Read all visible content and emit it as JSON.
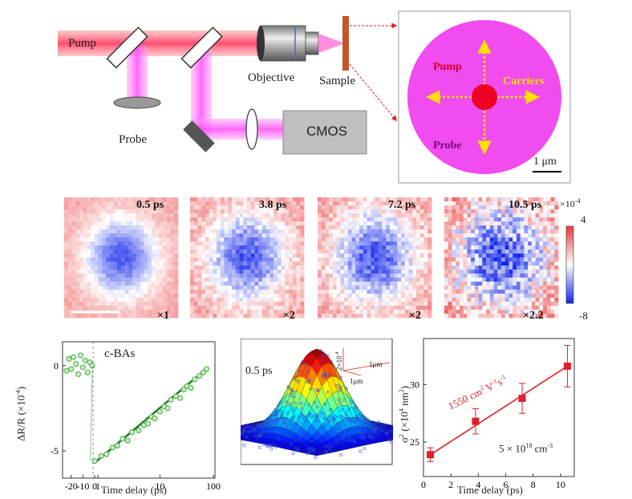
{
  "setup": {
    "pump_label": "Pump",
    "probe_label": "Probe",
    "objective_label": "Objective",
    "sample_label": "Sample",
    "camera_label": "CMOS",
    "inset": {
      "pump": "Pump",
      "carriers": "Carriers",
      "probe": "Probe",
      "scalebar": "1 μm"
    },
    "colors": {
      "pump": "#ff3a3a",
      "probe": "#ff66ff",
      "carriers": "#ffe000",
      "inset_spot": "#ee0022"
    }
  },
  "maps": {
    "panels": [
      {
        "time": "0.5 ps",
        "factor": "×1",
        "radius": 0.3,
        "noise": 0.05
      },
      {
        "time": "3.8 ps",
        "factor": "×2",
        "radius": 0.32,
        "noise": 0.1
      },
      {
        "time": "7.2 ps",
        "factor": "×2",
        "radius": 0.34,
        "noise": 0.12
      },
      {
        "time": "10.5 ps",
        "factor": "×2.2",
        "radius": 0.36,
        "noise": 0.22
      }
    ],
    "colorbar": {
      "exponent": "×10",
      "exponent_power": "-4",
      "max": "4",
      "min": "-8"
    }
  },
  "chart_data": [
    {
      "type": "scatter",
      "title": "c-BAs",
      "xlabel": "Time delay (ps)",
      "ylabel": "ΔR/R (×10",
      "ylabel_power": "-4",
      "ylabel_close": ")",
      "xticks": [
        "-20",
        "-10",
        "0",
        "1",
        "10",
        "100"
      ],
      "yticks": [
        "0",
        "-5"
      ],
      "pre_zero": {
        "x": [
          -24,
          -22,
          -20,
          -18,
          -16,
          -14,
          -12,
          -10,
          -8,
          -6,
          -4,
          -2
        ],
        "y": [
          -0.3,
          0.4,
          -0.2,
          0.5,
          0.1,
          -0.5,
          0.6,
          -0.1,
          0.3,
          -0.4,
          0.2,
          0.0
        ]
      },
      "post_zero": {
        "x": [
          0.6,
          0.8,
          1.0,
          1.3,
          1.6,
          2.0,
          2.5,
          3.0,
          4,
          5,
          6,
          7,
          8,
          10,
          12,
          14,
          16,
          20,
          24,
          28,
          32,
          38,
          45,
          55,
          65,
          75
        ],
        "y": [
          -5.6,
          -5.3,
          -5.2,
          -4.8,
          -4.7,
          -4.3,
          -4.4,
          -3.9,
          -3.8,
          -3.5,
          -3.4,
          -3.0,
          -3.1,
          -2.7,
          -2.4,
          -2.5,
          -2.0,
          -1.8,
          -1.9,
          -1.4,
          -1.2,
          -1.3,
          -0.8,
          -0.6,
          -0.4,
          -0.2
        ]
      },
      "fit": {
        "x": [
          0.6,
          80
        ],
        "y": [
          -5.7,
          -0.1
        ]
      }
    },
    {
      "type": "surface",
      "label": "0.5 ps",
      "scale_z": "2×10",
      "scale_z_power": "-4",
      "scale_x": "1μm",
      "scale_y": "1μm"
    },
    {
      "type": "line",
      "xlabel": "Time delay (ps)",
      "ylabel": "σ",
      "ylabel_units": " (×10",
      "ylabel_close": "nm",
      "xlim": [
        0,
        11
      ],
      "ylim": [
        22,
        34
      ],
      "xticks": [
        0,
        2,
        4,
        6,
        8,
        10
      ],
      "yticks": [
        25,
        30
      ],
      "points": {
        "x": [
          0.5,
          3.8,
          7.2,
          10.5
        ],
        "y": [
          23.9,
          26.8,
          28.8,
          31.6
        ],
        "err": [
          0.6,
          1.1,
          1.3,
          1.8
        ]
      },
      "fit": {
        "x": [
          0.5,
          10.5
        ],
        "y": [
          23.9,
          31.6
        ]
      },
      "annotation": "1550 cm",
      "annotation_units": "V",
      "annotation_units2": "s",
      "density": "5 × 10",
      "density_power": "18",
      "density_units": " cm",
      "density_units_power": "-3"
    }
  ]
}
